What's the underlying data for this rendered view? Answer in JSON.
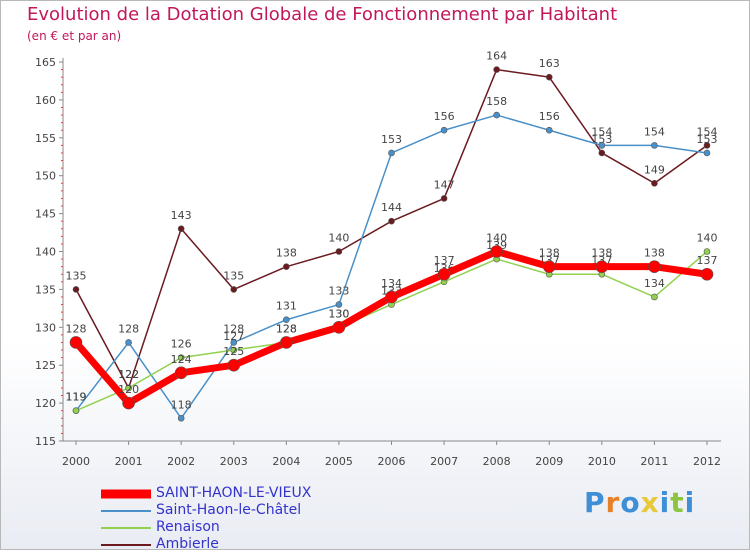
{
  "header": {
    "title": "Evolution de la Dotation Globale de Fonctionnement par Habitant",
    "subtitle": "(en € et par an)"
  },
  "chart_data": {
    "type": "line",
    "title": "Evolution de la Dotation Globale de Fonctionnement par Habitant",
    "subtitle": "(en € et par an)",
    "categories": [
      "2000",
      "2001",
      "2002",
      "2003",
      "2004",
      "2005",
      "2006",
      "2007",
      "2008",
      "2009",
      "2010",
      "2011",
      "2012"
    ],
    "ylim": [
      115,
      165
    ],
    "yticks": [
      115,
      120,
      125,
      130,
      135,
      140,
      145,
      150,
      155,
      160,
      165
    ],
    "grid": false,
    "legend_position": "bottom-left",
    "series": [
      {
        "name": "Ambierle",
        "color": "#6b1a1f",
        "values": [
          135,
          122,
          143,
          135,
          138,
          140,
          144,
          147,
          164,
          163,
          153,
          149,
          154
        ]
      },
      {
        "name": "Saint-Haon-le-Châtel",
        "color": "#4a90c8",
        "values": [
          119,
          128,
          118,
          128,
          131,
          133,
          153,
          156,
          158,
          156,
          154,
          154,
          153
        ]
      },
      {
        "name": "Renaison",
        "color": "#92d050",
        "values": [
          119,
          122,
          126,
          127,
          128,
          130,
          133,
          136,
          139,
          137,
          137,
          134,
          140
        ]
      },
      {
        "name": "SAINT-HAON-LE-VIEUX",
        "color": "#ff0000",
        "values": [
          128,
          120,
          124,
          125,
          128,
          130,
          134,
          137,
          140,
          138,
          138,
          138,
          137
        ]
      }
    ]
  },
  "legend": {
    "items": [
      {
        "label": "SAINT-HAON-LE-VIEUX",
        "color": "#ff0000",
        "text_color": "#3333cc"
      },
      {
        "label": "Saint-Haon-le-Châtel",
        "color": "#4a90c8",
        "text_color": "#3333cc"
      },
      {
        "label": "Renaison",
        "color": "#92d050",
        "text_color": "#3333cc"
      },
      {
        "label": "Ambierle",
        "color": "#6b1a1f",
        "text_color": "#3333cc"
      }
    ]
  },
  "brand": {
    "letters": [
      "P",
      "r",
      "o",
      "x",
      "i",
      "t",
      "i"
    ],
    "colors": [
      "#3f8fd6",
      "#e8802a",
      "#3f8fd6",
      "#e8c93a",
      "#3f8fd6",
      "#8cc63f",
      "#3f8fd6"
    ]
  }
}
